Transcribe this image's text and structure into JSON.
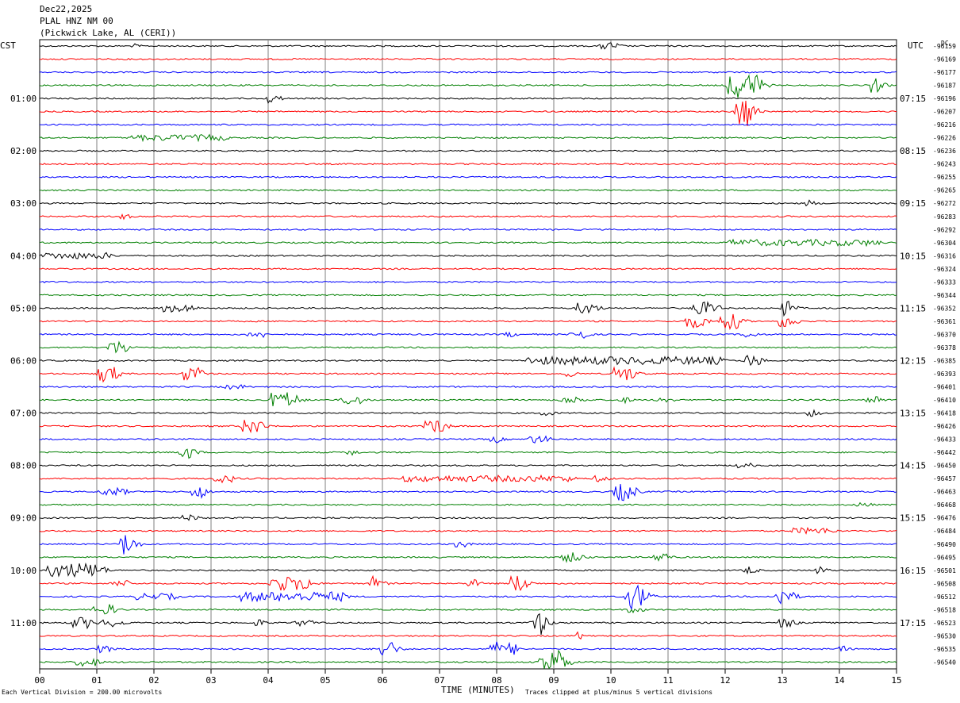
{
  "header": {
    "date": "Dec22,2025",
    "station": "PLAL HNZ NM 00",
    "location": "(Pickwick Lake, AL (CERI))"
  },
  "left_label": "CST",
  "right_label": "UTC",
  "dc_label": "DC",
  "colors": {
    "black": "#000000",
    "red": "#ff0000",
    "blue": "#0000ff",
    "green": "#007f00",
    "grid": "#7f7f7f"
  },
  "chart_data": {
    "type": "line",
    "xlabel": "TIME (MINUTES)",
    "x_ticks": [
      "00",
      "01",
      "02",
      "03",
      "04",
      "05",
      "06",
      "07",
      "08",
      "09",
      "10",
      "11",
      "12",
      "13",
      "14",
      "15"
    ],
    "xlim": [
      0,
      15
    ],
    "trace_count": 48,
    "trace_colors": [
      "black",
      "red",
      "blue",
      "green"
    ],
    "cst_labels": [
      "01:00",
      "02:00",
      "03:00",
      "04:00",
      "05:00",
      "06:00",
      "07:00",
      "08:00",
      "09:00",
      "10:00",
      "11:00"
    ],
    "utc_labels": [
      "07:15",
      "08:15",
      "09:15",
      "10:15",
      "11:15",
      "12:15",
      "13:15",
      "14:15",
      "15:15",
      "16:15",
      "17:15"
    ],
    "dc_values": [
      "-96159",
      "-96169",
      "-96177",
      "-96187",
      "-96196",
      "-96207",
      "-96216",
      "-96226",
      "-96236",
      "-96243",
      "-96255",
      "-96265",
      "-96272",
      "-96283",
      "-96292",
      "-96304",
      "-96316",
      "-96324",
      "-96333",
      "-96344",
      "-96352",
      "-96361",
      "-96370",
      "-96378",
      "-96385",
      "-96393",
      "-96401",
      "-96410",
      "-96418",
      "-96426",
      "-96433",
      "-96442",
      "-96450",
      "-96457",
      "-96463",
      "-96468",
      "-96476",
      "-96484",
      "-96490",
      "-96495",
      "-96501",
      "-96508",
      "-96512",
      "-96518",
      "-96523",
      "-96530",
      "-96535",
      "-96540"
    ],
    "events": [
      {
        "trace": 0,
        "minute": 9.95,
        "amp": 5,
        "dur": 0.25
      },
      {
        "trace": 0,
        "minute": 1.65,
        "amp": 3,
        "dur": 0.05
      },
      {
        "trace": 3,
        "minute": 12.3,
        "amp": 16,
        "dur": 0.5
      },
      {
        "trace": 3,
        "minute": 14.6,
        "amp": 10,
        "dur": 0.1
      },
      {
        "trace": 4,
        "minute": 4.05,
        "amp": 6,
        "dur": 0.15
      },
      {
        "trace": 5,
        "minute": 12.3,
        "amp": 20,
        "dur": 0.2
      },
      {
        "trace": 7,
        "minute": 2.4,
        "amp": 4,
        "dur": 1.6
      },
      {
        "trace": 12,
        "minute": 13.45,
        "amp": 5,
        "dur": 0.05
      },
      {
        "trace": 13,
        "minute": 1.45,
        "amp": 4,
        "dur": 0.1
      },
      {
        "trace": 15,
        "minute": 13.35,
        "amp": 4,
        "dur": 2.6
      },
      {
        "trace": 16,
        "minute": 0.6,
        "amp": 4,
        "dur": 1.2
      },
      {
        "trace": 20,
        "minute": 2.4,
        "amp": 5,
        "dur": 0.5
      },
      {
        "trace": 20,
        "minute": 9.55,
        "amp": 7,
        "dur": 0.3
      },
      {
        "trace": 20,
        "minute": 11.6,
        "amp": 8,
        "dur": 0.4
      },
      {
        "trace": 20,
        "minute": 13.05,
        "amp": 10,
        "dur": 0.1
      },
      {
        "trace": 21,
        "minute": 11.45,
        "amp": 8,
        "dur": 0.3
      },
      {
        "trace": 21,
        "minute": 12.05,
        "amp": 10,
        "dur": 0.3
      },
      {
        "trace": 21,
        "minute": 13.05,
        "amp": 8,
        "dur": 0.2
      },
      {
        "trace": 22,
        "minute": 3.8,
        "amp": 4,
        "dur": 0.3
      },
      {
        "trace": 22,
        "minute": 8.2,
        "amp": 4,
        "dur": 0.1
      },
      {
        "trace": 22,
        "minute": 9.4,
        "amp": 7,
        "dur": 0.2
      },
      {
        "trace": 22,
        "minute": 12.4,
        "amp": 4,
        "dur": 0.2
      },
      {
        "trace": 23,
        "minute": 1.35,
        "amp": 8,
        "dur": 0.3
      },
      {
        "trace": 24,
        "minute": 10.2,
        "amp": 5,
        "dur": 3.4
      },
      {
        "trace": 24,
        "minute": 12.45,
        "amp": 8,
        "dur": 0.2
      },
      {
        "trace": 24,
        "minute": 9.15,
        "amp": 5,
        "dur": 0.15
      },
      {
        "trace": 25,
        "minute": 1.15,
        "amp": 11,
        "dur": 0.25
      },
      {
        "trace": 25,
        "minute": 2.65,
        "amp": 9,
        "dur": 0.25
      },
      {
        "trace": 25,
        "minute": 9.25,
        "amp": 5,
        "dur": 0.1
      },
      {
        "trace": 25,
        "minute": 10.2,
        "amp": 9,
        "dur": 0.3
      },
      {
        "trace": 26,
        "minute": 3.4,
        "amp": 3,
        "dur": 0.3
      },
      {
        "trace": 27,
        "minute": 4.25,
        "amp": 10,
        "dur": 0.4
      },
      {
        "trace": 27,
        "minute": 5.45,
        "amp": 6,
        "dur": 0.3
      },
      {
        "trace": 27,
        "minute": 9.3,
        "amp": 4,
        "dur": 0.4
      },
      {
        "trace": 27,
        "minute": 10.2,
        "amp": 4,
        "dur": 0.15
      },
      {
        "trace": 27,
        "minute": 10.9,
        "amp": 4,
        "dur": 0.2
      },
      {
        "trace": 27,
        "minute": 14.55,
        "amp": 6,
        "dur": 0.2
      },
      {
        "trace": 28,
        "minute": 8.85,
        "amp": 4,
        "dur": 0.15
      },
      {
        "trace": 28,
        "minute": 13.5,
        "amp": 5,
        "dur": 0.1
      },
      {
        "trace": 29,
        "minute": 3.7,
        "amp": 9,
        "dur": 0.3
      },
      {
        "trace": 29,
        "minute": 6.9,
        "amp": 8,
        "dur": 0.3
      },
      {
        "trace": 30,
        "minute": 7.95,
        "amp": 5,
        "dur": 0.1
      },
      {
        "trace": 30,
        "minute": 8.7,
        "amp": 5,
        "dur": 0.3
      },
      {
        "trace": 31,
        "minute": 2.55,
        "amp": 8,
        "dur": 0.2
      },
      {
        "trace": 31,
        "minute": 5.4,
        "amp": 5,
        "dur": 0.1
      },
      {
        "trace": 32,
        "minute": 12.3,
        "amp": 3,
        "dur": 0.3
      },
      {
        "trace": 33,
        "minute": 3.2,
        "amp": 5,
        "dur": 0.3
      },
      {
        "trace": 33,
        "minute": 7.8,
        "amp": 4,
        "dur": 3.0
      },
      {
        "trace": 33,
        "minute": 9.8,
        "amp": 4,
        "dur": 0.2
      },
      {
        "trace": 34,
        "minute": 1.25,
        "amp": 5,
        "dur": 0.4
      },
      {
        "trace": 34,
        "minute": 2.75,
        "amp": 9,
        "dur": 0.15
      },
      {
        "trace": 34,
        "minute": 10.2,
        "amp": 11,
        "dur": 0.3
      },
      {
        "trace": 35,
        "minute": 14.4,
        "amp": 3,
        "dur": 0.2
      },
      {
        "trace": 36,
        "minute": 2.6,
        "amp": 4,
        "dur": 0.2
      },
      {
        "trace": 37,
        "minute": 13.5,
        "amp": 4,
        "dur": 0.7
      },
      {
        "trace": 38,
        "minute": 1.5,
        "amp": 14,
        "dur": 0.15
      },
      {
        "trace": 38,
        "minute": 7.35,
        "amp": 4,
        "dur": 0.2
      },
      {
        "trace": 39,
        "minute": 9.3,
        "amp": 6,
        "dur": 0.3
      },
      {
        "trace": 39,
        "minute": 10.85,
        "amp": 6,
        "dur": 0.2
      },
      {
        "trace": 40,
        "minute": 0.6,
        "amp": 9,
        "dur": 0.9
      },
      {
        "trace": 40,
        "minute": 12.4,
        "amp": 6,
        "dur": 0.1
      },
      {
        "trace": 40,
        "minute": 13.65,
        "amp": 5,
        "dur": 0.1
      },
      {
        "trace": 41,
        "minute": 1.4,
        "amp": 4,
        "dur": 0.3
      },
      {
        "trace": 41,
        "minute": 4.2,
        "amp": 10,
        "dur": 0.3
      },
      {
        "trace": 41,
        "minute": 4.6,
        "amp": 9,
        "dur": 0.2
      },
      {
        "trace": 41,
        "minute": 5.85,
        "amp": 9,
        "dur": 0.1
      },
      {
        "trace": 41,
        "minute": 7.55,
        "amp": 6,
        "dur": 0.1
      },
      {
        "trace": 41,
        "minute": 8.35,
        "amp": 11,
        "dur": 0.2
      },
      {
        "trace": 42,
        "minute": 2.0,
        "amp": 4,
        "dur": 0.7
      },
      {
        "trace": 42,
        "minute": 4.4,
        "amp": 6,
        "dur": 1.8
      },
      {
        "trace": 42,
        "minute": 10.4,
        "amp": 16,
        "dur": 0.25
      },
      {
        "trace": 42,
        "minute": 13.0,
        "amp": 12,
        "dur": 0.2
      },
      {
        "trace": 43,
        "minute": 1.1,
        "amp": 7,
        "dur": 0.3
      },
      {
        "trace": 43,
        "minute": 10.4,
        "amp": 4,
        "dur": 0.2
      },
      {
        "trace": 44,
        "minute": 0.7,
        "amp": 7,
        "dur": 0.3
      },
      {
        "trace": 44,
        "minute": 1.25,
        "amp": 5,
        "dur": 0.3
      },
      {
        "trace": 44,
        "minute": 3.8,
        "amp": 5,
        "dur": 0.1
      },
      {
        "trace": 44,
        "minute": 4.6,
        "amp": 4,
        "dur": 0.3
      },
      {
        "trace": 44,
        "minute": 8.7,
        "amp": 16,
        "dur": 0.15
      },
      {
        "trace": 44,
        "minute": 13.05,
        "amp": 6,
        "dur": 0.2
      },
      {
        "trace": 45,
        "minute": 9.45,
        "amp": 5,
        "dur": 0.1
      },
      {
        "trace": 46,
        "minute": 1.1,
        "amp": 5,
        "dur": 0.15
      },
      {
        "trace": 46,
        "minute": 6.05,
        "amp": 11,
        "dur": 0.2
      },
      {
        "trace": 46,
        "minute": 7.95,
        "amp": 10,
        "dur": 0.1
      },
      {
        "trace": 46,
        "minute": 8.25,
        "amp": 8,
        "dur": 0.1
      },
      {
        "trace": 46,
        "minute": 14.05,
        "amp": 4,
        "dur": 0.1
      },
      {
        "trace": 47,
        "minute": 0.8,
        "amp": 6,
        "dur": 0.3
      },
      {
        "trace": 47,
        "minute": 8.95,
        "amp": 16,
        "dur": 0.35
      }
    ]
  },
  "footer": {
    "scale_note": "Each Vertical Division =  200.00 microvolts",
    "clip_note": "Traces clipped at plus/minus 5 vertical divisions"
  }
}
